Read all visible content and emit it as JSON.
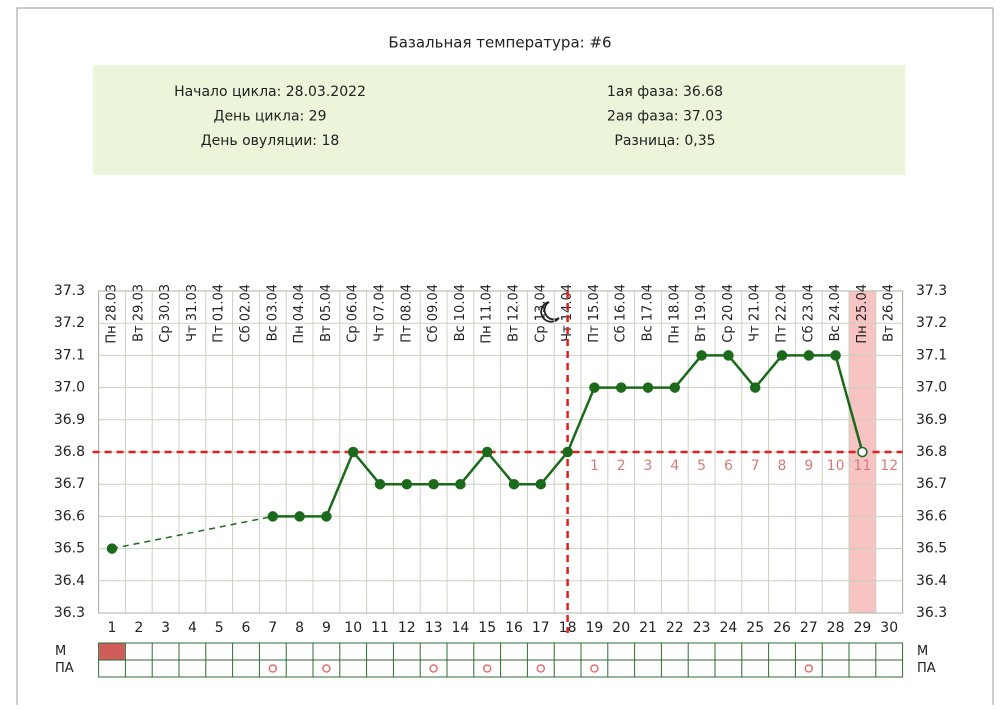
{
  "chart_data": {
    "type": "line",
    "title": "Базальная температура: #6",
    "info_left": [
      "Начало цикла: 28.03.2022",
      "День цикла: 29",
      "День овуляции: 18"
    ],
    "info_right": [
      "1ая фаза: 36.68",
      "2ая фаза: 37.03",
      "Разница: 0,35"
    ],
    "x": [
      1,
      2,
      3,
      4,
      5,
      6,
      7,
      8,
      9,
      10,
      11,
      12,
      13,
      14,
      15,
      16,
      17,
      18,
      19,
      20,
      21,
      22,
      23,
      24,
      25,
      26,
      27,
      28,
      29,
      30
    ],
    "dates": [
      "Пн 28.03",
      "Вт 29.03",
      "Ср 30.03",
      "Чт 31.03",
      "Пт 01.04",
      "Сб 02.04",
      "Вс 03.04",
      "Пн 04.04",
      "Вт 05.04",
      "Ср 06.04",
      "Чт 07.04",
      "Пт 08.04",
      "Сб 09.04",
      "Вс 10.04",
      "Пн 11.04",
      "Вт 12.04",
      "Ср 13.04",
      "Чт 14.04",
      "Пт 15.04",
      "Сб 16.04",
      "Вс 17.04",
      "Пн 18.04",
      "Вт 19.04",
      "Ср 20.04",
      "Чт 21.04",
      "Пт 22.04",
      "Сб 23.04",
      "Вс 24.04",
      "Пн 25.04",
      "Вт 26.04"
    ],
    "series": [
      {
        "color": "#1b6a1b",
        "values": [
          36.5,
          null,
          null,
          null,
          null,
          null,
          36.6,
          36.6,
          36.6,
          36.8,
          36.7,
          36.7,
          36.7,
          36.7,
          36.8,
          36.7,
          36.7,
          36.8,
          37.0,
          37.0,
          37.0,
          37.0,
          37.1,
          37.1,
          37.0,
          37.1,
          37.1,
          37.1,
          36.8,
          null
        ]
      }
    ],
    "bridge_gaps": true,
    "open_marker_days": [
      29
    ],
    "xlim": [
      0.5,
      30.5
    ],
    "ylim": [
      36.3,
      37.3
    ],
    "yticks": [
      36.3,
      36.4,
      36.5,
      36.6,
      36.7,
      36.8,
      36.9,
      {
        "value": 37,
        "label": "37.0"
      },
      37.1,
      37.2,
      37.3
    ],
    "grid": true,
    "coverline": 36.8,
    "ovulation_day": 18,
    "phase_labels": [
      "1",
      "2",
      "3",
      "4",
      "5",
      "6",
      "7",
      "8",
      "9",
      "10",
      "11",
      "12"
    ],
    "highlight_day": 29,
    "row_labels": [
      "М",
      "ПА"
    ],
    "m_days": [
      1
    ],
    "pa_days": [
      7,
      9,
      13,
      15,
      17,
      19,
      27
    ]
  }
}
